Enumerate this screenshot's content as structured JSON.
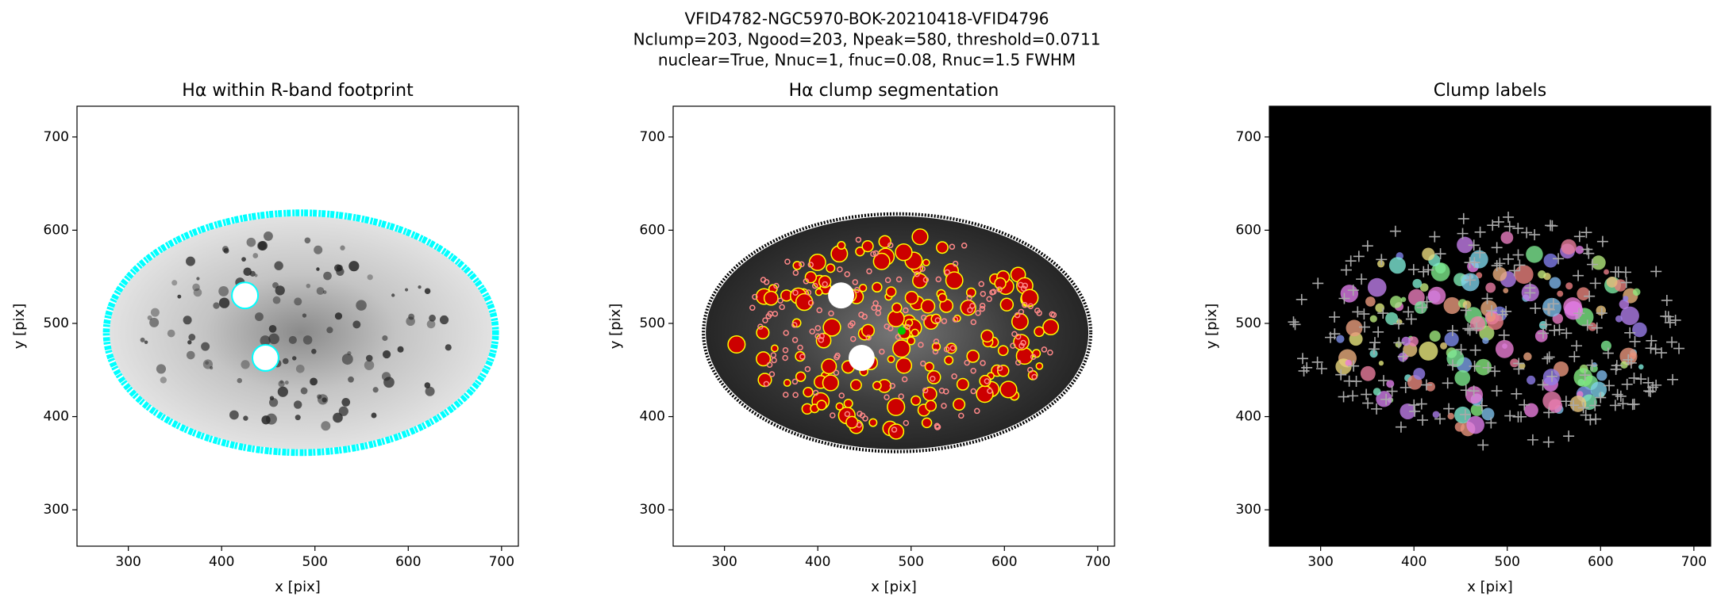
{
  "suptitle": [
    "VFID4782-NGC5970-BOK-20210418-VFID4796",
    "Nclump=203, Ngood=203, Npeak=580, threshold=0.0711",
    "nuclear=True, Nnuc=1, fnuc=0.08, Rnuc=1.5 FWHM"
  ],
  "chart_data": [
    {
      "type": "image",
      "style": "halpha",
      "title": "Hα within R-band footprint",
      "xlabel": "x [pix]",
      "ylabel": "y [pix]",
      "xlim": [
        245,
        718
      ],
      "ylim": [
        261,
        733
      ],
      "xticks": [
        300,
        400,
        500,
        600,
        700
      ],
      "yticks": [
        300,
        400,
        500,
        600,
        700
      ]
    },
    {
      "type": "image",
      "style": "segmentation",
      "title": "Hα clump segmentation",
      "xlabel": "x [pix]",
      "ylabel": "y [pix]",
      "xlim": [
        245,
        718
      ],
      "ylim": [
        261,
        733
      ],
      "xticks": [
        300,
        400,
        500,
        600,
        700
      ],
      "yticks": [
        300,
        400,
        500,
        600,
        700
      ]
    },
    {
      "type": "image",
      "style": "labels",
      "title": "Clump labels",
      "xlabel": "x [pix]",
      "ylabel": "y [pix]",
      "xlim": [
        245,
        718
      ],
      "ylim": [
        261,
        733
      ],
      "xticks": [
        300,
        400,
        500,
        600,
        700
      ],
      "yticks": [
        300,
        400,
        500,
        600,
        700
      ]
    }
  ]
}
